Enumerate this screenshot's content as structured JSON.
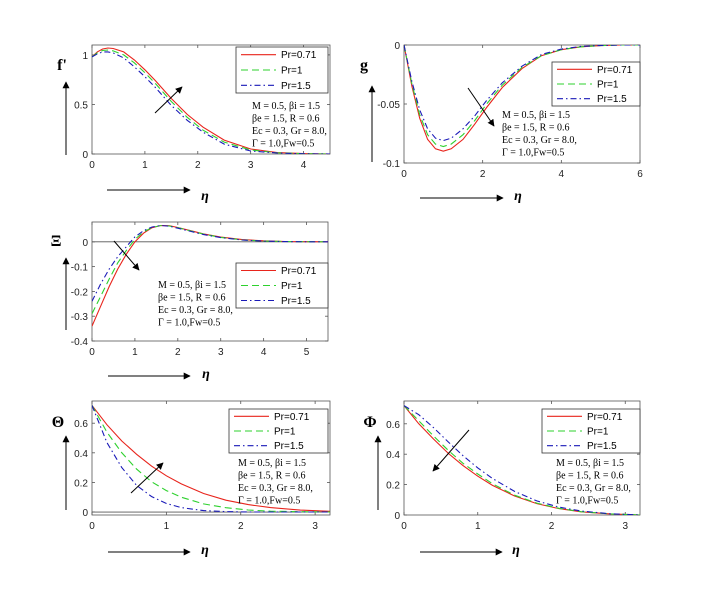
{
  "chart_data": [
    {
      "type": "line",
      "ylabel": "f'",
      "xlabel": "η",
      "xlim": [
        0,
        4.5
      ],
      "ylim": [
        0,
        1.1
      ],
      "xticks": [
        "0",
        "1",
        "2",
        "3",
        "4"
      ],
      "yticks": [
        "0",
        "0.5",
        "1"
      ],
      "legend_position": "top-right",
      "arrow_direction": "up",
      "annotation": [
        "M = 0.5, βi = 1.5",
        "βe = 1.5, R = 0.6",
        "Ec = 0.3, Gr = 8.0,",
        "Γ = 1.0,Fw=0.5"
      ],
      "series": [
        {
          "name": "Pr=0.71",
          "x": [
            0,
            0.1,
            0.2,
            0.3,
            0.4,
            0.6,
            0.8,
            1.0,
            1.2,
            1.5,
            1.8,
            2.1,
            2.5,
            3.0,
            3.5,
            4.0,
            4.5
          ],
          "y": [
            0.98,
            1.03,
            1.06,
            1.07,
            1.065,
            1.03,
            0.95,
            0.85,
            0.74,
            0.56,
            0.4,
            0.27,
            0.14,
            0.05,
            0.015,
            0.004,
            0.0
          ]
        },
        {
          "name": "Pr=1",
          "x": [
            0,
            0.1,
            0.2,
            0.3,
            0.4,
            0.6,
            0.8,
            1.0,
            1.2,
            1.5,
            1.8,
            2.1,
            2.5,
            3.0,
            3.5,
            4.0,
            4.5
          ],
          "y": [
            0.98,
            1.02,
            1.045,
            1.05,
            1.04,
            1.0,
            0.92,
            0.82,
            0.71,
            0.53,
            0.37,
            0.24,
            0.12,
            0.04,
            0.012,
            0.003,
            0.0
          ]
        },
        {
          "name": "Pr=1.5",
          "x": [
            0,
            0.1,
            0.2,
            0.3,
            0.4,
            0.6,
            0.8,
            1.0,
            1.2,
            1.5,
            1.8,
            2.1,
            2.5,
            3.0,
            3.5,
            4.0,
            4.5
          ],
          "y": [
            0.98,
            1.01,
            1.03,
            1.03,
            1.02,
            0.97,
            0.88,
            0.78,
            0.67,
            0.49,
            0.34,
            0.22,
            0.1,
            0.03,
            0.01,
            0.002,
            0.0
          ]
        }
      ]
    },
    {
      "type": "line",
      "ylabel": "g",
      "xlabel": "η",
      "xlim": [
        0,
        6
      ],
      "ylim": [
        -0.1,
        0
      ],
      "xticks": [
        "0",
        "2",
        "4",
        "6"
      ],
      "yticks": [
        "-0.1",
        "-0.05",
        "0"
      ],
      "legend_position": "top-right",
      "arrow_direction": "down",
      "annotation": [
        "M = 0.5, βi = 1.5",
        "βe = 1.5, R = 0.6",
        "Ec = 0.3, Gr = 8.0,",
        "Γ = 1.0,Fw=0.5"
      ],
      "series": [
        {
          "name": "Pr=0.71",
          "x": [
            0,
            0.2,
            0.4,
            0.6,
            0.8,
            1.0,
            1.2,
            1.5,
            1.8,
            2.1,
            2.5,
            3.0,
            3.5,
            4.0,
            4.5,
            5.0,
            5.5,
            6.0
          ],
          "y": [
            0,
            -0.035,
            -0.062,
            -0.08,
            -0.088,
            -0.09,
            -0.088,
            -0.08,
            -0.067,
            -0.053,
            -0.036,
            -0.02,
            -0.009,
            -0.004,
            -0.0015,
            -0.0005,
            0,
            0
          ]
        },
        {
          "name": "Pr=1",
          "x": [
            0,
            0.2,
            0.4,
            0.6,
            0.8,
            1.0,
            1.2,
            1.5,
            1.8,
            2.1,
            2.5,
            3.0,
            3.5,
            4.0,
            4.5,
            5.0,
            5.5,
            6.0
          ],
          "y": [
            0,
            -0.033,
            -0.059,
            -0.076,
            -0.084,
            -0.086,
            -0.084,
            -0.076,
            -0.064,
            -0.05,
            -0.034,
            -0.019,
            -0.009,
            -0.004,
            -0.0015,
            -0.0005,
            0,
            0
          ]
        },
        {
          "name": "Pr=1.5",
          "x": [
            0,
            0.2,
            0.4,
            0.6,
            0.8,
            1.0,
            1.2,
            1.5,
            1.8,
            2.1,
            2.5,
            3.0,
            3.5,
            4.0,
            4.5,
            5.0,
            5.5,
            6.0
          ],
          "y": [
            0,
            -0.031,
            -0.055,
            -0.071,
            -0.079,
            -0.081,
            -0.079,
            -0.071,
            -0.06,
            -0.047,
            -0.032,
            -0.018,
            -0.008,
            -0.0035,
            -0.0012,
            -0.0004,
            0,
            0
          ]
        }
      ]
    },
    {
      "type": "line",
      "ylabel": "Ξ",
      "xlabel": "η",
      "xlim": [
        0,
        5.5
      ],
      "ylim": [
        -0.4,
        0.08
      ],
      "xticks": [
        "0",
        "1",
        "2",
        "3",
        "4",
        "5"
      ],
      "yticks": [
        "-0.4",
        "-0.3",
        "-0.2",
        "-0.1",
        "0"
      ],
      "legend_position": "middle-right",
      "arrow_direction": "down-right",
      "annotation": [
        "M = 0.5, βi = 1.5",
        "βe = 1.5, R = 0.6",
        "Ec = 0.3, Gr = 8.0,",
        "Γ = 1.0,Fw=0.5"
      ],
      "series": [
        {
          "name": "Pr=0.71",
          "x": [
            0,
            0.2,
            0.4,
            0.6,
            0.8,
            1.0,
            1.2,
            1.4,
            1.6,
            1.8,
            2.0,
            2.3,
            2.6,
            3.0,
            3.5,
            4.0,
            4.5,
            5.0,
            5.5
          ],
          "y": [
            -0.34,
            -0.26,
            -0.18,
            -0.11,
            -0.05,
            0.0,
            0.035,
            0.057,
            0.066,
            0.065,
            0.058,
            0.045,
            0.032,
            0.019,
            0.009,
            0.004,
            0.0015,
            0.0005,
            0
          ]
        },
        {
          "name": "Pr=1",
          "x": [
            0,
            0.2,
            0.4,
            0.6,
            0.8,
            1.0,
            1.2,
            1.4,
            1.6,
            1.8,
            2.0,
            2.3,
            2.6,
            3.0,
            3.5,
            4.0,
            4.5,
            5.0,
            5.5
          ],
          "y": [
            -0.29,
            -0.22,
            -0.15,
            -0.085,
            -0.035,
            0.01,
            0.04,
            0.058,
            0.066,
            0.064,
            0.057,
            0.044,
            0.031,
            0.018,
            0.008,
            0.0035,
            0.0012,
            0.0004,
            0
          ]
        },
        {
          "name": "Pr=1.5",
          "x": [
            0,
            0.2,
            0.4,
            0.6,
            0.8,
            1.0,
            1.2,
            1.4,
            1.6,
            1.8,
            2.0,
            2.3,
            2.6,
            3.0,
            3.5,
            4.0,
            4.5,
            5.0,
            5.5
          ],
          "y": [
            -0.24,
            -0.17,
            -0.11,
            -0.06,
            -0.02,
            0.02,
            0.045,
            0.06,
            0.066,
            0.063,
            0.055,
            0.042,
            0.029,
            0.017,
            0.0075,
            0.003,
            0.001,
            0.0003,
            0
          ]
        }
      ]
    },
    {
      "type": "line",
      "ylabel": "Θ",
      "xlabel": "η",
      "xlim": [
        0,
        3.2
      ],
      "ylim": [
        -0.02,
        0.75
      ],
      "xticks": [
        "0",
        "1",
        "2",
        "3"
      ],
      "yticks": [
        "0",
        "0.2",
        "0.4",
        "0.6"
      ],
      "legend_position": "top-right",
      "arrow_direction": "up",
      "annotation": [
        "M = 0.5, βi = 1.5",
        "βe = 1.5, R = 0.6",
        "Ec = 0.3, Gr = 8.0,",
        "Γ = 1.0,Fw=0.5"
      ],
      "series": [
        {
          "name": "Pr=0.71",
          "x": [
            0,
            0.2,
            0.4,
            0.6,
            0.8,
            1.0,
            1.2,
            1.5,
            1.8,
            2.1,
            2.4,
            2.8,
            3.2
          ],
          "y": [
            0.72,
            0.59,
            0.48,
            0.39,
            0.31,
            0.245,
            0.19,
            0.125,
            0.08,
            0.05,
            0.03,
            0.013,
            0.005
          ]
        },
        {
          "name": "Pr=1",
          "x": [
            0,
            0.2,
            0.4,
            0.6,
            0.8,
            1.0,
            1.2,
            1.5,
            1.8,
            2.1,
            2.4,
            2.8,
            3.2
          ],
          "y": [
            0.72,
            0.54,
            0.4,
            0.29,
            0.205,
            0.145,
            0.1,
            0.055,
            0.029,
            0.014,
            0.006,
            0.002,
            0.0
          ]
        },
        {
          "name": "Pr=1.5",
          "x": [
            0,
            0.2,
            0.4,
            0.6,
            0.8,
            1.0,
            1.2,
            1.5,
            1.8,
            2.1,
            2.4,
            2.8,
            3.2
          ],
          "y": [
            0.72,
            0.47,
            0.3,
            0.18,
            0.105,
            0.058,
            0.03,
            0.01,
            0.003,
            0.0,
            0.0,
            0.0,
            0.0
          ]
        }
      ]
    },
    {
      "type": "line",
      "ylabel": "Φ",
      "xlabel": "η",
      "xlim": [
        0,
        3.2
      ],
      "ylim": [
        0,
        0.75
      ],
      "xticks": [
        "0",
        "1",
        "2",
        "3"
      ],
      "yticks": [
        "0",
        "0.2",
        "0.4",
        "0.6"
      ],
      "legend_position": "top-right",
      "arrow_direction": "down",
      "annotation": [
        "M = 0.5, βi = 1.5",
        "βe = 1.5, R = 0.6",
        "Ec = 0.3, Gr = 8.0,",
        "Γ = 1.0,Fw=0.5"
      ],
      "series": [
        {
          "name": "Pr=0.71",
          "x": [
            0,
            0.2,
            0.4,
            0.6,
            0.8,
            1.0,
            1.2,
            1.5,
            1.8,
            2.1,
            2.4,
            2.8,
            3.2
          ],
          "y": [
            0.72,
            0.6,
            0.5,
            0.405,
            0.325,
            0.255,
            0.195,
            0.125,
            0.075,
            0.042,
            0.021,
            0.007,
            0.0
          ]
        },
        {
          "name": "Pr=1",
          "x": [
            0,
            0.2,
            0.4,
            0.6,
            0.8,
            1.0,
            1.2,
            1.5,
            1.8,
            2.1,
            2.4,
            2.8,
            3.2
          ],
          "y": [
            0.72,
            0.62,
            0.52,
            0.425,
            0.34,
            0.27,
            0.205,
            0.13,
            0.078,
            0.044,
            0.022,
            0.007,
            0.0
          ]
        },
        {
          "name": "Pr=1.5",
          "x": [
            0,
            0.2,
            0.4,
            0.6,
            0.8,
            1.0,
            1.2,
            1.5,
            1.8,
            2.1,
            2.4,
            2.8,
            3.2
          ],
          "y": [
            0.72,
            0.66,
            0.575,
            0.48,
            0.39,
            0.31,
            0.24,
            0.155,
            0.093,
            0.052,
            0.026,
            0.008,
            0.0
          ]
        }
      ]
    }
  ],
  "series_colors": [
    "#e8241c",
    "#2ed12e",
    "#1a1ab8"
  ],
  "series_dashes": [
    "",
    "7,4",
    "6,3,1.5,3"
  ],
  "icon": "arrow-icon"
}
